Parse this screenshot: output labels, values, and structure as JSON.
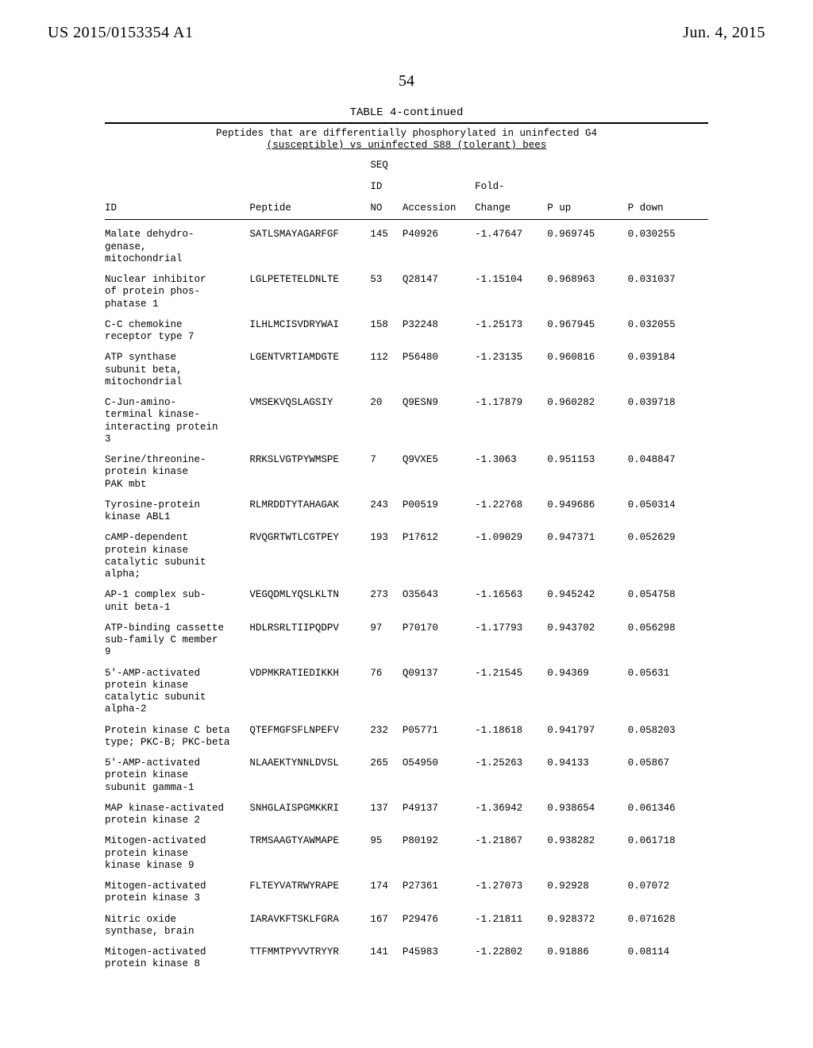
{
  "header": {
    "pub_id": "US 2015/0153354 A1",
    "pub_date": "Jun. 4, 2015"
  },
  "page_number": "54",
  "table": {
    "caption": "TABLE 4-continued",
    "subtitle_line1": "Peptides that are differentially phosphorylated in uninfected G4",
    "subtitle_line2": "(susceptible) vs uninfected S88 (tolerant) bees",
    "columns": {
      "id": "ID",
      "peptide": "Peptide",
      "seq_h1": "SEQ",
      "seq_h2": "ID",
      "seq_h3": "NO",
      "accession": "Accession",
      "fold_h1": "Fold-",
      "fold_h2": "Change",
      "p_up": "P up",
      "p_down": "P down"
    },
    "rows": [
      {
        "id": "Malate dehydro-\ngenase,\nmitochondrial",
        "peptide": "SATLSMAYAGARFGF",
        "seq": "145",
        "acc": "P40926",
        "fold": "-1.47647",
        "pu": "0.969745",
        "pd": "0.030255"
      },
      {
        "id": "Nuclear inhibitor\nof protein phos-\nphatase 1",
        "peptide": "LGLPETETELDNLTE",
        "seq": "53",
        "acc": "Q28147",
        "fold": "-1.15104",
        "pu": "0.968963",
        "pd": "0.031037"
      },
      {
        "id": "C-C chemokine\nreceptor type 7",
        "peptide": "ILHLMCISVDRYWAI",
        "seq": "158",
        "acc": "P32248",
        "fold": "-1.25173",
        "pu": "0.967945",
        "pd": "0.032055"
      },
      {
        "id": "ATP synthase\nsubunit beta,\nmitochondrial",
        "peptide": "LGENTVRTIAMDGTE",
        "seq": "112",
        "acc": "P56480",
        "fold": "-1.23135",
        "pu": "0.960816",
        "pd": "0.039184"
      },
      {
        "id": "C-Jun-amino-\nterminal kinase-\ninteracting protein\n3",
        "peptide": "VMSEKVQSLAGSIY",
        "seq": "20",
        "acc": "Q9ESN9",
        "fold": "-1.17879",
        "pu": "0.960282",
        "pd": "0.039718"
      },
      {
        "id": "Serine/threonine-\nprotein kinase\nPAK mbt",
        "peptide": "RRKSLVGTPYWMSPE",
        "seq": "7",
        "acc": "Q9VXE5",
        "fold": "-1.3063",
        "pu": "0.951153",
        "pd": "0.048847"
      },
      {
        "id": "Tyrosine-protein\nkinase ABL1",
        "peptide": "RLMRDDTYTAHAGAK",
        "seq": "243",
        "acc": "P00519",
        "fold": "-1.22768",
        "pu": "0.949686",
        "pd": "0.050314"
      },
      {
        "id": "cAMP-dependent\nprotein kinase\ncatalytic subunit\nalpha;",
        "peptide": "RVQGRTWTLCGTPEY",
        "seq": "193",
        "acc": "P17612",
        "fold": "-1.09029",
        "pu": "0.947371",
        "pd": "0.052629"
      },
      {
        "id": "AP-1 complex sub-\nunit beta-1",
        "peptide": "VEGQDMLYQSLKLTN",
        "seq": "273",
        "acc": "O35643",
        "fold": "-1.16563",
        "pu": "0.945242",
        "pd": "0.054758"
      },
      {
        "id": "ATP-binding cassette\nsub-family C member\n9",
        "peptide": "HDLRSRLTIIPQDPV",
        "seq": "97",
        "acc": "P70170",
        "fold": "-1.17793",
        "pu": "0.943702",
        "pd": "0.056298"
      },
      {
        "id": "5'-AMP-activated\nprotein kinase\ncatalytic subunit\nalpha-2",
        "peptide": "VDPMKRATIEDIKKH",
        "seq": "76",
        "acc": "Q09137",
        "fold": "-1.21545",
        "pu": "0.94369",
        "pd": "0.05631"
      },
      {
        "id": "Protein kinase C beta\ntype; PKC-B; PKC-beta",
        "peptide": "QTEFMGFSFLNPEFV",
        "seq": "232",
        "acc": "P05771",
        "fold": "-1.18618",
        "pu": "0.941797",
        "pd": "0.058203"
      },
      {
        "id": "5'-AMP-activated\nprotein kinase\nsubunit gamma-1",
        "peptide": "NLAAEKTYNNLDVSL",
        "seq": "265",
        "acc": "O54950",
        "fold": "-1.25263",
        "pu": "0.94133",
        "pd": "0.05867"
      },
      {
        "id": "MAP kinase-activated\nprotein kinase 2",
        "peptide": "SNHGLAISPGMKKRI",
        "seq": "137",
        "acc": "P49137",
        "fold": "-1.36942",
        "pu": "0.938654",
        "pd": "0.061346"
      },
      {
        "id": "Mitogen-activated\nprotein kinase\nkinase kinase 9",
        "peptide": "TRMSAAGTYAWMAPE",
        "seq": "95",
        "acc": "P80192",
        "fold": "-1.21867",
        "pu": "0.938282",
        "pd": "0.061718"
      },
      {
        "id": "Mitogen-activated\nprotein kinase 3",
        "peptide": "FLTEYVATRWYRAPE",
        "seq": "174",
        "acc": "P27361",
        "fold": "-1.27073",
        "pu": "0.92928",
        "pd": "0.07072"
      },
      {
        "id": "Nitric oxide\nsynthase, brain",
        "peptide": "IARAVKFTSKLFGRA",
        "seq": "167",
        "acc": "P29476",
        "fold": "-1.21811",
        "pu": "0.928372",
        "pd": "0.071628"
      },
      {
        "id": "Mitogen-activated\nprotein kinase 8",
        "peptide": "TTFMMTPYVVTRYYR",
        "seq": "141",
        "acc": "P45983",
        "fold": "-1.22802",
        "pu": "0.91886",
        "pd": "0.08114"
      }
    ]
  }
}
